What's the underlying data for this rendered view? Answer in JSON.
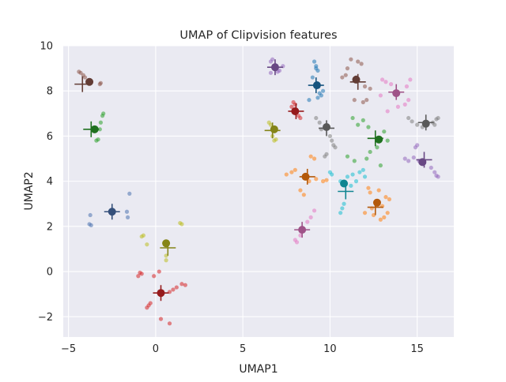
{
  "chart_data": {
    "type": "scatter",
    "title": "UMAP of Clipvision features",
    "xlabel": "UMAP1",
    "ylabel": "UMAP2",
    "xlim": [
      -5.3,
      17.1
    ],
    "ylim": [
      -2.9,
      10.0
    ],
    "xticks": [
      -5,
      0,
      5,
      10,
      15
    ],
    "yticks": [
      -2,
      0,
      2,
      4,
      6,
      8,
      10
    ],
    "xtick_labels": [
      "−5",
      "0",
      "5",
      "10",
      "15"
    ],
    "ytick_labels": [
      "−2",
      "0",
      "2",
      "4",
      "6",
      "8",
      "10"
    ],
    "grid": true,
    "background": "#eaeaf2",
    "series": [
      {
        "color": "#8c564b",
        "cross": [
          -4.2,
          8.3
        ],
        "centroid": [
          -3.8,
          8.4
        ],
        "points": [
          [
            -4.4,
            8.85
          ],
          [
            -4.3,
            8.8
          ],
          [
            -4.15,
            8.7
          ],
          [
            -4.05,
            8.6
          ],
          [
            -3.2,
            8.3
          ],
          [
            -3.15,
            8.35
          ]
        ]
      },
      {
        "color": "#2ca02c",
        "cross": [
          -3.7,
          6.3
        ],
        "centroid": [
          -3.5,
          6.3
        ],
        "points": [
          [
            -3.4,
            5.8
          ],
          [
            -3.3,
            5.85
          ],
          [
            -3.2,
            6.3
          ],
          [
            -3.15,
            6.6
          ],
          [
            -3.05,
            6.9
          ],
          [
            -3.0,
            7.0
          ]
        ]
      },
      {
        "color": "#4c72b0",
        "cross": [
          -2.5,
          2.65
        ],
        "centroid": [
          -2.5,
          2.65
        ],
        "points": [
          [
            -3.8,
            2.1
          ],
          [
            -3.75,
            2.5
          ],
          [
            -3.7,
            2.05
          ],
          [
            -1.65,
            2.65
          ],
          [
            -1.6,
            2.4
          ],
          [
            -1.5,
            3.45
          ]
        ]
      },
      {
        "color": "#bcbd22",
        "cross": [
          0.7,
          1.05
        ],
        "centroid": [
          0.6,
          1.25
        ],
        "points": [
          [
            -0.8,
            1.55
          ],
          [
            -0.7,
            1.6
          ],
          [
            -0.5,
            1.2
          ],
          [
            0.6,
            0.5
          ],
          [
            0.6,
            0.7
          ],
          [
            1.5,
            2.1
          ],
          [
            1.4,
            2.15
          ]
        ]
      },
      {
        "color": "#d62728",
        "cross": [
          0.3,
          -0.95
        ],
        "centroid": [
          0.3,
          -0.95
        ],
        "points": [
          [
            -1.0,
            -0.2
          ],
          [
            -0.9,
            -0.05
          ],
          [
            -0.8,
            -0.1
          ],
          [
            -0.4,
            -1.5
          ],
          [
            -0.5,
            -1.6
          ],
          [
            -0.3,
            -1.4
          ],
          [
            0.8,
            -0.9
          ],
          [
            1.2,
            -0.7
          ],
          [
            1.5,
            -0.55
          ],
          [
            1.7,
            -0.6
          ],
          [
            0.3,
            -2.1
          ],
          [
            0.8,
            -2.3
          ],
          [
            -0.1,
            -0.2
          ],
          [
            0.2,
            0.0
          ],
          [
            1.0,
            -0.8
          ]
        ]
      },
      {
        "color": "#bcbd22",
        "cross": [
          6.7,
          6.25
        ],
        "centroid": [
          6.8,
          6.3
        ],
        "points": [
          [
            6.5,
            6.6
          ],
          [
            6.6,
            6.5
          ],
          [
            6.8,
            5.8
          ],
          [
            6.9,
            5.85
          ],
          [
            6.7,
            6.0
          ]
        ]
      },
      {
        "color": "#9467bd",
        "cross": [
          6.85,
          9.05
        ],
        "centroid": [
          6.85,
          9.05
        ],
        "points": [
          [
            6.6,
            9.3
          ],
          [
            6.7,
            9.4
          ],
          [
            7.0,
            8.85
          ],
          [
            7.1,
            8.9
          ],
          [
            7.3,
            9.1
          ],
          [
            6.6,
            8.8
          ]
        ]
      },
      {
        "color": "#d62728",
        "cross": [
          8.05,
          7.1
        ],
        "centroid": [
          8.0,
          7.1
        ],
        "points": [
          [
            7.8,
            7.3
          ],
          [
            7.9,
            7.5
          ],
          [
            8.2,
            6.9
          ],
          [
            8.3,
            6.8
          ],
          [
            8.0,
            7.4
          ]
        ]
      },
      {
        "color": "#1f77b4",
        "cross": [
          9.2,
          8.25
        ],
        "centroid": [
          9.25,
          8.25
        ],
        "points": [
          [
            9.1,
            9.3
          ],
          [
            9.2,
            9.1
          ],
          [
            9.3,
            8.9
          ],
          [
            9.0,
            8.6
          ],
          [
            9.4,
            7.9
          ],
          [
            9.3,
            7.7
          ],
          [
            9.5,
            7.8
          ],
          [
            8.8,
            7.6
          ],
          [
            9.6,
            8.0
          ],
          [
            9.2,
            9.0
          ]
        ]
      },
      {
        "color": "#7f7f7f",
        "cross": [
          9.8,
          6.35
        ],
        "centroid": [
          9.8,
          6.4
        ],
        "points": [
          [
            9.2,
            6.8
          ],
          [
            9.4,
            6.6
          ],
          [
            10.0,
            6.0
          ],
          [
            10.1,
            5.8
          ],
          [
            10.2,
            5.6
          ],
          [
            10.3,
            5.5
          ],
          [
            9.8,
            5.2
          ],
          [
            9.7,
            5.1
          ],
          [
            9.5,
            6.3
          ]
        ]
      },
      {
        "color": "#ff7f0e",
        "cross": [
          8.7,
          4.2
        ],
        "centroid": [
          8.6,
          4.2
        ],
        "points": [
          [
            7.5,
            4.3
          ],
          [
            7.8,
            4.4
          ],
          [
            8.0,
            4.5
          ],
          [
            8.8,
            4.0
          ],
          [
            9.2,
            4.1
          ],
          [
            9.6,
            4.0
          ],
          [
            9.8,
            4.05
          ],
          [
            8.9,
            5.1
          ],
          [
            9.1,
            5.0
          ],
          [
            8.3,
            3.6
          ],
          [
            8.5,
            3.4
          ]
        ]
      },
      {
        "color": "#e377c2",
        "cross": [
          8.4,
          1.85
        ],
        "centroid": [
          8.4,
          1.85
        ],
        "points": [
          [
            8.0,
            1.4
          ],
          [
            8.1,
            1.3
          ],
          [
            8.9,
            2.4
          ],
          [
            9.1,
            2.7
          ],
          [
            8.7,
            2.2
          ],
          [
            8.3,
            1.6
          ]
        ]
      },
      {
        "color": "#17becf",
        "cross": [
          10.9,
          3.55
        ],
        "centroid": [
          10.8,
          3.9
        ],
        "points": [
          [
            10.0,
            4.4
          ],
          [
            10.1,
            4.3
          ],
          [
            10.6,
            4.0
          ],
          [
            11.0,
            4.2
          ],
          [
            11.3,
            4.3
          ],
          [
            11.7,
            4.4
          ],
          [
            11.9,
            4.5
          ],
          [
            12.0,
            4.2
          ],
          [
            10.8,
            3.0
          ],
          [
            10.7,
            2.8
          ],
          [
            10.6,
            2.6
          ],
          [
            11.5,
            4.0
          ],
          [
            11.2,
            3.8
          ]
        ]
      },
      {
        "color": "#ff7f0e",
        "cross": [
          12.6,
          2.85
        ],
        "centroid": [
          12.7,
          3.05
        ],
        "points": [
          [
            12.3,
            3.5
          ],
          [
            12.2,
            3.7
          ],
          [
            12.0,
            2.6
          ],
          [
            12.5,
            2.5
          ],
          [
            12.9,
            2.3
          ],
          [
            13.1,
            2.4
          ],
          [
            13.3,
            2.6
          ],
          [
            13.4,
            3.2
          ],
          [
            13.2,
            3.3
          ],
          [
            12.4,
            2.8
          ],
          [
            12.8,
            3.6
          ],
          [
            13.0,
            2.9
          ]
        ]
      },
      {
        "color": "#2ca02c",
        "cross": [
          12.6,
          5.9
        ],
        "centroid": [
          12.8,
          5.85
        ],
        "points": [
          [
            11.3,
            6.8
          ],
          [
            11.6,
            6.5
          ],
          [
            11.9,
            6.7
          ],
          [
            12.2,
            6.4
          ],
          [
            13.1,
            6.2
          ],
          [
            13.3,
            5.8
          ],
          [
            12.3,
            5.3
          ],
          [
            12.1,
            5.0
          ],
          [
            11.4,
            4.9
          ],
          [
            11.0,
            5.1
          ],
          [
            12.9,
            4.7
          ],
          [
            12.7,
            5.5
          ]
        ]
      },
      {
        "color": "#8c564b",
        "cross": [
          11.6,
          8.4
        ],
        "centroid": [
          11.5,
          8.5
        ],
        "points": [
          [
            11.0,
            9.0
          ],
          [
            11.2,
            9.4
          ],
          [
            11.6,
            9.3
          ],
          [
            11.8,
            9.2
          ],
          [
            10.7,
            8.6
          ],
          [
            10.9,
            8.7
          ],
          [
            12.0,
            8.2
          ],
          [
            12.3,
            8.1
          ],
          [
            11.4,
            7.6
          ],
          [
            11.9,
            7.5
          ],
          [
            12.1,
            7.6
          ],
          [
            11.5,
            8.6
          ]
        ]
      },
      {
        "color": "#e377c2",
        "cross": [
          13.8,
          7.95
        ],
        "centroid": [
          13.8,
          7.9
        ],
        "points": [
          [
            13.0,
            8.5
          ],
          [
            13.2,
            8.4
          ],
          [
            13.5,
            8.3
          ],
          [
            14.4,
            8.2
          ],
          [
            14.5,
            7.6
          ],
          [
            14.3,
            7.4
          ],
          [
            13.9,
            7.3
          ],
          [
            13.3,
            7.1
          ],
          [
            12.9,
            7.8
          ],
          [
            14.6,
            8.5
          ]
        ]
      },
      {
        "color": "#7f7f7f",
        "cross": [
          15.5,
          6.6
        ],
        "centroid": [
          15.5,
          6.55
        ],
        "points": [
          [
            14.5,
            6.8
          ],
          [
            14.7,
            6.65
          ],
          [
            15.0,
            6.5
          ],
          [
            15.9,
            6.6
          ],
          [
            16.1,
            6.75
          ],
          [
            16.2,
            6.8
          ],
          [
            16.0,
            6.5
          ],
          [
            15.3,
            6.4
          ]
        ]
      },
      {
        "color": "#9467bd",
        "cross": [
          15.4,
          4.95
        ],
        "centroid": [
          15.3,
          4.85
        ],
        "points": [
          [
            14.3,
            5.0
          ],
          [
            14.5,
            4.9
          ],
          [
            14.8,
            5.05
          ],
          [
            15.0,
            5.6
          ],
          [
            14.9,
            5.5
          ],
          [
            15.8,
            4.6
          ],
          [
            16.0,
            4.4
          ],
          [
            16.1,
            4.25
          ],
          [
            16.2,
            4.2
          ],
          [
            15.1,
            4.9
          ]
        ]
      }
    ]
  }
}
